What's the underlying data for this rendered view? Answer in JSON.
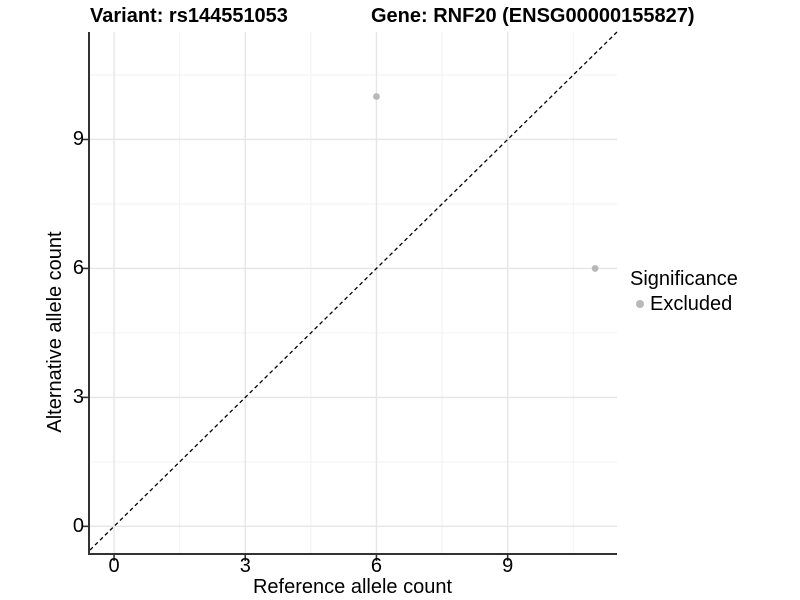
{
  "titles": {
    "variant": "Variant: rs144551053",
    "gene": "Gene: RNF20 (ENSG00000155827)"
  },
  "axes": {
    "x": {
      "label": "Reference allele count"
    },
    "y": {
      "label": "Alternative allele count"
    }
  },
  "legend": {
    "title": "Significance",
    "items": [
      {
        "label": "Excluded",
        "marker": "dot-icon",
        "color": "#b8b8b8"
      }
    ]
  },
  "chart_data": {
    "type": "scatter",
    "title": "Variant: rs144551053 | Gene: RNF20 (ENSG00000155827)",
    "xlabel": "Reference allele count",
    "ylabel": "Alternative allele count",
    "xlim": [
      -0.55,
      11.5
    ],
    "ylim": [
      -0.62,
      11.5
    ],
    "x_major_ticks": [
      0,
      3,
      6,
      9
    ],
    "y_major_ticks": [
      0,
      3,
      6,
      9
    ],
    "x_minor_ticks": [
      1.5,
      4.5,
      7.5,
      10.5
    ],
    "y_minor_ticks": [
      1.5,
      4.5,
      7.5,
      10.5
    ],
    "grid": "major+minor",
    "legend_position": "right",
    "series": [
      {
        "name": "Excluded",
        "color": "#b8b8b8",
        "points": [
          {
            "x": 6,
            "y": 10
          },
          {
            "x": 11,
            "y": 6
          }
        ]
      }
    ],
    "reference_line": {
      "type": "identity y=x",
      "style": "dashed",
      "color": "#000000"
    }
  },
  "colors": {
    "background": "#ffffff",
    "axis_line": "#333333",
    "tick_mark": "#333333",
    "grid_major": "#e6e6e6",
    "grid_minor": "#f2f2f2",
    "point": "#b8b8b8",
    "reference_line": "#000000",
    "text": "#000000"
  }
}
